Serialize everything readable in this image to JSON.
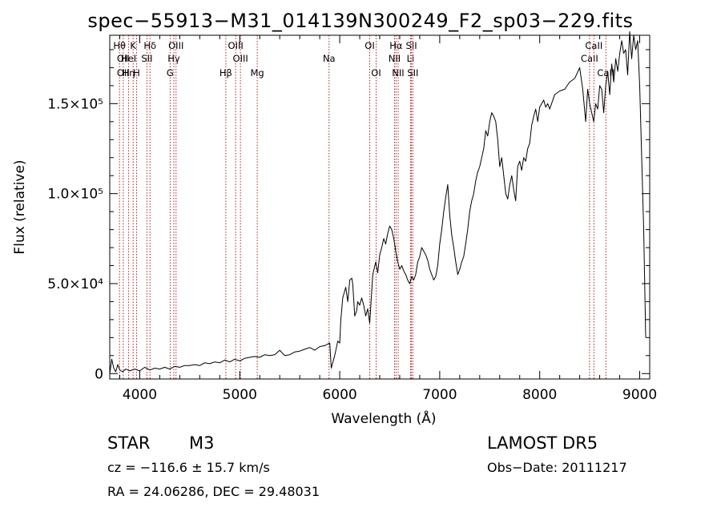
{
  "chart_data": {
    "type": "line",
    "title": "spec−55913−M31_014139N300249_F2_sp03−229.fits",
    "xlabel": "Wavelength (Å)",
    "ylabel": "Flux (relative)",
    "xlim": [
      3700,
      9100
    ],
    "ylim": [
      -3000,
      188000
    ],
    "xticks": [
      4000,
      5000,
      6000,
      7000,
      8000,
      9000
    ],
    "xticklabels": [
      "4000",
      "5000",
      "6000",
      "7000",
      "8000",
      "9000"
    ],
    "yticks": [
      0,
      50000,
      100000,
      150000
    ],
    "yticklabels": [
      "0",
      "5.0×10⁴",
      "1.0×10⁵",
      "1.5×10⁵"
    ],
    "line_color": "#000000",
    "marker_color": "#b22222",
    "series": [
      {
        "x": [
          3700,
          3720,
          3740,
          3760,
          3780,
          3800,
          3830,
          3860,
          3900,
          3950,
          4000,
          4050,
          4100,
          4150,
          4200,
          4250,
          4300,
          4350,
          4400,
          4450,
          4500,
          4550,
          4600,
          4650,
          4700,
          4750,
          4800,
          4850,
          4900,
          4950,
          5000,
          5050,
          5100,
          5150,
          5200,
          5250,
          5300,
          5350,
          5400,
          5450,
          5500,
          5550,
          5600,
          5650,
          5700,
          5750,
          5800,
          5850,
          5900,
          5915,
          5950,
          5980,
          6000,
          6010,
          6030,
          6060,
          6080,
          6100,
          6120,
          6130,
          6150,
          6170,
          6180,
          6200,
          6220,
          6240,
          6260,
          6280,
          6300,
          6330,
          6360,
          6380,
          6400,
          6420,
          6440,
          6460,
          6480,
          6500,
          6520,
          6540,
          6560,
          6580,
          6600,
          6620,
          6640,
          6660,
          6680,
          6700,
          6720,
          6740,
          6760,
          6780,
          6800,
          6820,
          6840,
          6860,
          6880,
          6900,
          6920,
          6940,
          6960,
          6980,
          7000,
          7020,
          7040,
          7060,
          7080,
          7100,
          7120,
          7140,
          7160,
          7180,
          7200,
          7220,
          7240,
          7260,
          7280,
          7300,
          7320,
          7340,
          7360,
          7380,
          7400,
          7420,
          7440,
          7460,
          7480,
          7500,
          7520,
          7540,
          7560,
          7580,
          7600,
          7620,
          7640,
          7660,
          7680,
          7700,
          7720,
          7740,
          7760,
          7780,
          7800,
          7820,
          7840,
          7860,
          7880,
          7900,
          7920,
          7940,
          7960,
          7980,
          8000,
          8020,
          8040,
          8060,
          8080,
          8100,
          8150,
          8200,
          8250,
          8300,
          8350,
          8400,
          8430,
          8460,
          8480,
          8500,
          8520,
          8540,
          8560,
          8580,
          8600,
          8620,
          8640,
          8660,
          8680,
          8700,
          8720,
          8740,
          8760,
          8780,
          8800,
          8820,
          8840,
          8860,
          8880,
          8900,
          8920,
          8940,
          8960,
          8980,
          9000,
          9020,
          9040,
          9060
        ],
        "y": [
          0,
          8000,
          3000,
          1000,
          5000,
          2000,
          1000,
          2500,
          1500,
          2500,
          1500,
          3500,
          2000,
          3000,
          2500,
          3500,
          2500,
          4000,
          3500,
          4500,
          4500,
          5000,
          4500,
          6000,
          5500,
          6500,
          6000,
          7500,
          6500,
          8000,
          7000,
          8500,
          9000,
          9500,
          9000,
          10500,
          10000,
          10500,
          13000,
          10000,
          10500,
          12000,
          12500,
          13500,
          14500,
          13000,
          15000,
          15500,
          17000,
          3000,
          10000,
          18000,
          17000,
          29000,
          42000,
          48000,
          40000,
          52000,
          53000,
          50000,
          32000,
          35000,
          40000,
          38000,
          42000,
          38000,
          32000,
          36000,
          28000,
          55000,
          62000,
          56000,
          66000,
          70000,
          75000,
          72000,
          78000,
          82000,
          80000,
          75000,
          68000,
          62000,
          58000,
          60000,
          57000,
          55000,
          52000,
          50000,
          54000,
          52000,
          55000,
          62000,
          65000,
          70000,
          68000,
          66000,
          63000,
          58000,
          55000,
          52000,
          54000,
          60000,
          72000,
          80000,
          90000,
          98000,
          105000,
          88000,
          77000,
          70000,
          62000,
          55000,
          58000,
          62000,
          65000,
          72000,
          80000,
          90000,
          96000,
          100000,
          107000,
          112000,
          115000,
          120000,
          125000,
          135000,
          132000,
          140000,
          145000,
          143000,
          140000,
          130000,
          115000,
          120000,
          110000,
          100000,
          97000,
          105000,
          110000,
          102000,
          96000,
          115000,
          118000,
          113000,
          120000,
          118000,
          125000,
          128000,
          138000,
          143000,
          147000,
          140000,
          148000,
          150000,
          152000,
          148000,
          150000,
          147000,
          155000,
          157000,
          158000,
          162000,
          164000,
          170000,
          158000,
          140000,
          158000,
          150000,
          145000,
          140000,
          150000,
          147000,
          160000,
          158000,
          145000,
          160000,
          168000,
          155000,
          172000,
          162000,
          175000,
          168000,
          178000,
          185000,
          178000,
          180000,
          166000,
          190000,
          175000,
          188000,
          180000,
          185000,
          160000,
          120000,
          80000,
          20000
        ]
      }
    ],
    "lines": [
      {
        "x": 3798,
        "labels": [
          "Hθ"
        ],
        "rows": [
          0
        ]
      },
      {
        "x": 3835,
        "labels": [
          "OII",
          "OII"
        ],
        "rows": [
          1,
          2
        ]
      },
      {
        "x": 3889,
        "labels": [
          "HeI",
          "Hη"
        ],
        "rows": [
          1,
          2
        ]
      },
      {
        "x": 3934,
        "labels": [
          "K"
        ],
        "rows": [
          0
        ]
      },
      {
        "x": 3968,
        "labels": [
          "H"
        ],
        "rows": [
          2
        ]
      },
      {
        "x": 4072,
        "labels": [
          "SII"
        ],
        "rows": [
          1
        ]
      },
      {
        "x": 4102,
        "labels": [
          "Hδ"
        ],
        "rows": [
          0
        ]
      },
      {
        "x": 4304,
        "labels": [
          "G"
        ],
        "rows": [
          2
        ]
      },
      {
        "x": 4341,
        "labels": [
          "Hγ"
        ],
        "rows": [
          1
        ]
      },
      {
        "x": 4363,
        "labels": [
          "OIII"
        ],
        "rows": [
          0
        ]
      },
      {
        "x": 4861,
        "labels": [
          "Hβ"
        ],
        "rows": [
          2
        ]
      },
      {
        "x": 4959,
        "labels": [
          "OIII"
        ],
        "rows": [
          0
        ]
      },
      {
        "x": 5007,
        "labels": [
          "OIII"
        ],
        "rows": [
          1
        ]
      },
      {
        "x": 5175,
        "labels": [
          "Mg"
        ],
        "rows": [
          2
        ]
      },
      {
        "x": 5893,
        "labels": [
          "Na"
        ],
        "rows": [
          1
        ]
      },
      {
        "x": 6300,
        "labels": [
          "OI"
        ],
        "rows": [
          0
        ]
      },
      {
        "x": 6364,
        "labels": [
          "OI"
        ],
        "rows": [
          2
        ]
      },
      {
        "x": 6548,
        "labels": [
          "NII"
        ],
        "rows": [
          1
        ]
      },
      {
        "x": 6563,
        "labels": [
          "Hα"
        ],
        "rows": [
          0
        ]
      },
      {
        "x": 6584,
        "labels": [
          "NII"
        ],
        "rows": [
          2
        ]
      },
      {
        "x": 6708,
        "labels": [
          "Li"
        ],
        "rows": [
          1
        ]
      },
      {
        "x": 6717,
        "labels": [
          "SII"
        ],
        "rows": [
          0
        ]
      },
      {
        "x": 6731,
        "labels": [
          "SII"
        ],
        "rows": [
          2
        ]
      },
      {
        "x": 8498,
        "labels": [
          "CaII"
        ],
        "rows": [
          1
        ]
      },
      {
        "x": 8542,
        "labels": [
          "CaII"
        ],
        "rows": [
          0
        ]
      },
      {
        "x": 8662,
        "labels": [
          "CaII"
        ],
        "rows": [
          2
        ]
      }
    ]
  },
  "info": {
    "class_label": "STAR",
    "subclass": "M3",
    "survey": "LAMOST  DR5",
    "cz": "cz = −116.6 ± 15.7 km/s",
    "obs_date": "Obs−Date: 20111217",
    "coords": "RA =  24.06286, DEC =  29.48031"
  }
}
